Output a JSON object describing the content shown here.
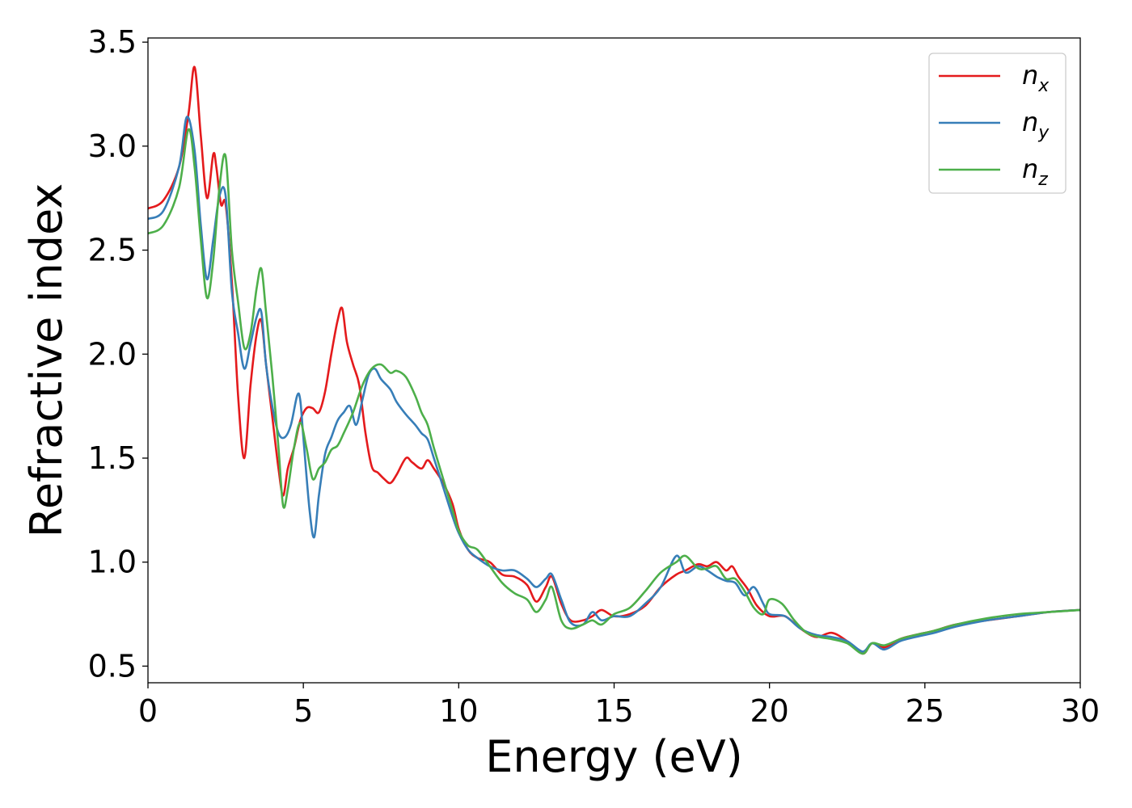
{
  "chart_data": {
    "type": "line",
    "title": "",
    "xlabel": "Energy (eV)",
    "ylabel": "Refractive index",
    "xlim": [
      0,
      30
    ],
    "ylim": [
      0.42,
      3.52
    ],
    "xticks": [
      0,
      5,
      10,
      15,
      20,
      25,
      30
    ],
    "xtick_labels": [
      "0",
      "5",
      "10",
      "15",
      "20",
      "25",
      "30"
    ],
    "yticks": [
      0.5,
      1.0,
      1.5,
      2.0,
      2.5,
      3.0,
      3.5
    ],
    "ytick_labels": [
      "0.5",
      "1.0",
      "1.5",
      "2.0",
      "2.5",
      "3.0",
      "3.5"
    ],
    "grid": false,
    "legend_position": "top-right",
    "series": [
      {
        "name": "n_x",
        "label_base": "n",
        "label_sub": "x",
        "color": "#e41a1c",
        "x": [
          0,
          0.5,
          1.0,
          1.3,
          1.5,
          1.7,
          1.9,
          2.1,
          2.2,
          2.35,
          2.5,
          2.7,
          2.9,
          3.1,
          3.3,
          3.5,
          3.65,
          3.8,
          4.0,
          4.2,
          4.35,
          4.5,
          4.7,
          4.9,
          5.1,
          5.3,
          5.5,
          5.7,
          5.9,
          6.1,
          6.25,
          6.4,
          6.6,
          6.8,
          7.0,
          7.2,
          7.4,
          7.6,
          7.8,
          8.0,
          8.3,
          8.5,
          8.8,
          9.0,
          9.2,
          9.5,
          9.8,
          10.0,
          10.3,
          10.6,
          11.0,
          11.4,
          11.8,
          12.2,
          12.5,
          12.8,
          13.0,
          13.3,
          13.6,
          14.0,
          14.3,
          14.6,
          15.0,
          15.5,
          16.0,
          16.5,
          17.0,
          17.3,
          17.7,
          18.0,
          18.3,
          18.6,
          18.8,
          19.0,
          19.3,
          19.6,
          20.0,
          20.5,
          21.0,
          21.5,
          22.0,
          22.5,
          23.0,
          23.3,
          23.7,
          24.2,
          24.7,
          25.3,
          26.0,
          27.0,
          28.0,
          29.0,
          30.0
        ],
        "y": [
          2.7,
          2.74,
          2.9,
          3.15,
          3.38,
          3.05,
          2.75,
          2.96,
          2.9,
          2.72,
          2.72,
          2.35,
          1.8,
          1.5,
          1.85,
          2.1,
          2.16,
          1.95,
          1.7,
          1.45,
          1.32,
          1.45,
          1.55,
          1.68,
          1.74,
          1.74,
          1.72,
          1.82,
          2.0,
          2.16,
          2.22,
          2.06,
          1.95,
          1.85,
          1.62,
          1.46,
          1.43,
          1.4,
          1.38,
          1.42,
          1.5,
          1.48,
          1.45,
          1.49,
          1.45,
          1.38,
          1.28,
          1.16,
          1.06,
          1.02,
          1.0,
          0.94,
          0.93,
          0.89,
          0.81,
          0.88,
          0.93,
          0.8,
          0.72,
          0.72,
          0.74,
          0.77,
          0.74,
          0.75,
          0.79,
          0.88,
          0.94,
          0.96,
          0.99,
          0.98,
          1.0,
          0.96,
          0.98,
          0.93,
          0.87,
          0.79,
          0.74,
          0.74,
          0.68,
          0.64,
          0.66,
          0.62,
          0.56,
          0.61,
          0.59,
          0.63,
          0.65,
          0.67,
          0.7,
          0.72,
          0.74,
          0.76,
          0.77
        ]
      },
      {
        "name": "n_y",
        "label_base": "n",
        "label_sub": "y",
        "color": "#377eb8",
        "x": [
          0,
          0.5,
          1.0,
          1.25,
          1.5,
          1.7,
          1.9,
          2.1,
          2.3,
          2.5,
          2.7,
          2.9,
          3.1,
          3.3,
          3.5,
          3.65,
          3.8,
          4.0,
          4.2,
          4.4,
          4.6,
          4.8,
          4.9,
          5.0,
          5.2,
          5.35,
          5.5,
          5.7,
          5.9,
          6.1,
          6.3,
          6.5,
          6.7,
          6.9,
          7.1,
          7.3,
          7.5,
          7.8,
          8.0,
          8.3,
          8.6,
          8.8,
          9.0,
          9.2,
          9.5,
          9.8,
          10.0,
          10.3,
          10.6,
          11.0,
          11.4,
          11.8,
          12.2,
          12.5,
          12.8,
          13.0,
          13.3,
          13.6,
          14.0,
          14.3,
          14.6,
          15.0,
          15.5,
          16.0,
          16.5,
          17.0,
          17.3,
          17.7,
          18.0,
          18.3,
          18.6,
          18.9,
          19.2,
          19.5,
          19.8,
          20.0,
          20.5,
          21.0,
          21.5,
          22.0,
          22.5,
          23.0,
          23.3,
          23.7,
          24.2,
          24.7,
          25.3,
          26.0,
          27.0,
          28.0,
          29.0,
          30.0
        ],
        "y": [
          2.65,
          2.69,
          2.9,
          3.14,
          2.98,
          2.62,
          2.36,
          2.55,
          2.76,
          2.76,
          2.3,
          2.1,
          1.93,
          2.05,
          2.18,
          2.2,
          1.95,
          1.75,
          1.62,
          1.6,
          1.66,
          1.8,
          1.78,
          1.6,
          1.25,
          1.12,
          1.32,
          1.52,
          1.6,
          1.68,
          1.72,
          1.75,
          1.66,
          1.78,
          1.9,
          1.93,
          1.88,
          1.83,
          1.77,
          1.71,
          1.66,
          1.62,
          1.59,
          1.5,
          1.36,
          1.22,
          1.14,
          1.06,
          1.02,
          0.98,
          0.96,
          0.96,
          0.92,
          0.88,
          0.92,
          0.94,
          0.82,
          0.71,
          0.7,
          0.76,
          0.72,
          0.74,
          0.74,
          0.8,
          0.88,
          1.03,
          0.95,
          0.98,
          0.96,
          0.93,
          0.91,
          0.9,
          0.84,
          0.88,
          0.8,
          0.75,
          0.74,
          0.68,
          0.65,
          0.64,
          0.62,
          0.57,
          0.61,
          0.58,
          0.62,
          0.64,
          0.66,
          0.69,
          0.72,
          0.74,
          0.76,
          0.77
        ]
      },
      {
        "name": "n_z",
        "label_base": "n",
        "label_sub": "z",
        "color": "#4daf4a",
        "x": [
          0,
          0.5,
          1.0,
          1.3,
          1.5,
          1.7,
          1.9,
          2.1,
          2.3,
          2.5,
          2.7,
          2.9,
          3.1,
          3.3,
          3.5,
          3.65,
          3.8,
          4.0,
          4.2,
          4.35,
          4.5,
          4.7,
          4.9,
          5.1,
          5.3,
          5.5,
          5.7,
          5.9,
          6.1,
          6.3,
          6.6,
          6.9,
          7.2,
          7.5,
          7.8,
          8.0,
          8.3,
          8.6,
          8.8,
          9.0,
          9.2,
          9.5,
          9.8,
          10.0,
          10.3,
          10.6,
          11.0,
          11.4,
          11.8,
          12.2,
          12.5,
          12.8,
          13.0,
          13.3,
          13.6,
          14.0,
          14.3,
          14.6,
          15.0,
          15.5,
          16.0,
          16.5,
          17.0,
          17.3,
          17.7,
          18.0,
          18.3,
          18.6,
          18.9,
          19.2,
          19.5,
          19.8,
          20.0,
          20.4,
          20.8,
          21.2,
          21.6,
          22.0,
          22.5,
          23.0,
          23.3,
          23.7,
          24.2,
          24.7,
          25.3,
          26.0,
          27.0,
          28.0,
          29.0,
          30.0
        ],
        "y": [
          2.58,
          2.62,
          2.8,
          3.08,
          2.9,
          2.55,
          2.27,
          2.45,
          2.8,
          2.95,
          2.5,
          2.25,
          2.03,
          2.1,
          2.32,
          2.41,
          2.2,
          1.9,
          1.55,
          1.27,
          1.35,
          1.55,
          1.67,
          1.55,
          1.4,
          1.45,
          1.48,
          1.54,
          1.56,
          1.62,
          1.72,
          1.85,
          1.93,
          1.95,
          1.91,
          1.92,
          1.89,
          1.8,
          1.72,
          1.66,
          1.55,
          1.4,
          1.25,
          1.15,
          1.08,
          1.06,
          0.98,
          0.9,
          0.85,
          0.82,
          0.76,
          0.82,
          0.88,
          0.72,
          0.68,
          0.7,
          0.72,
          0.7,
          0.75,
          0.78,
          0.86,
          0.95,
          1.0,
          1.03,
          0.97,
          0.97,
          0.98,
          0.92,
          0.92,
          0.86,
          0.78,
          0.75,
          0.82,
          0.8,
          0.72,
          0.66,
          0.64,
          0.63,
          0.61,
          0.56,
          0.61,
          0.6,
          0.63,
          0.65,
          0.67,
          0.7,
          0.73,
          0.75,
          0.76,
          0.77
        ]
      }
    ]
  }
}
